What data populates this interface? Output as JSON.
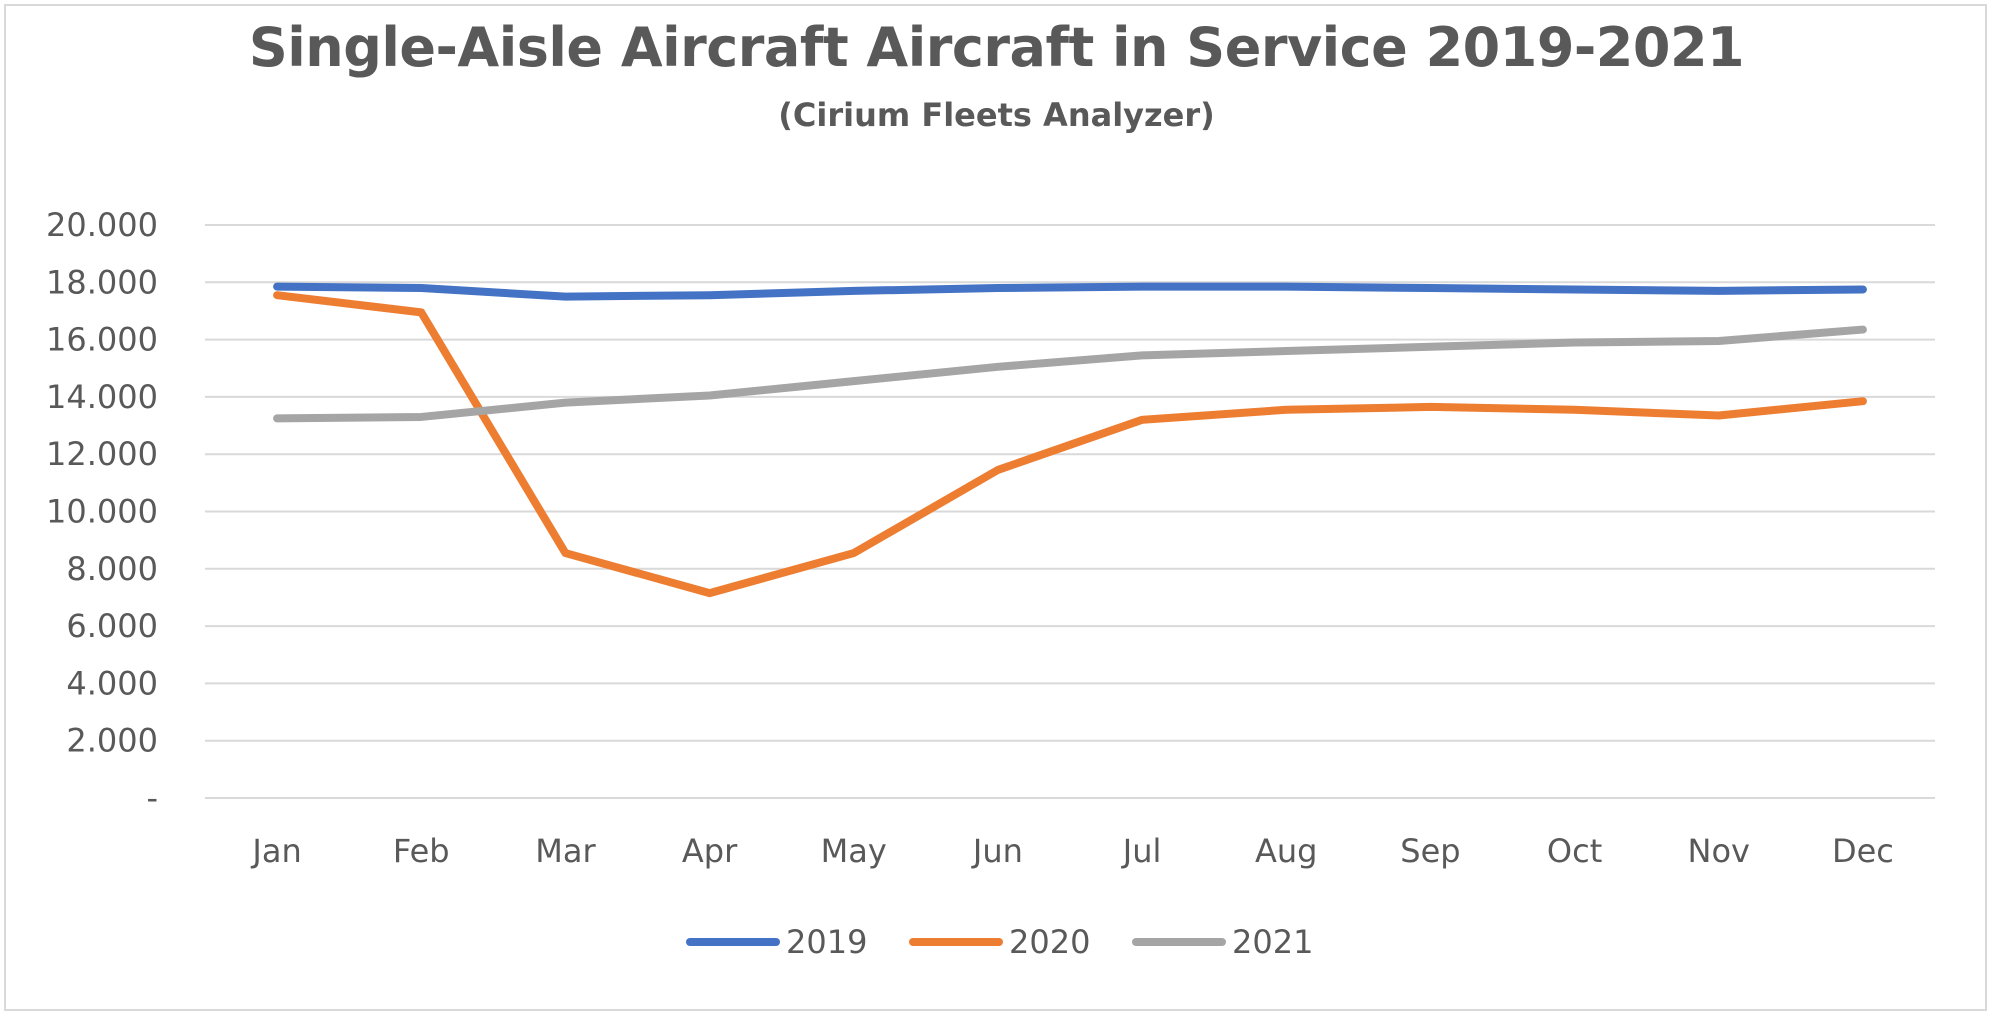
{
  "chart_data": {
    "type": "line",
    "title": "Single-Aisle Aircraft Aircraft in Service 2019-2021",
    "subtitle": "(Cirium Fleets Analyzer)",
    "categories": [
      "Jan",
      "Feb",
      "Mar",
      "Apr",
      "May",
      "Jun",
      "Jul",
      "Aug",
      "Sep",
      "Oct",
      "Nov",
      "Dec"
    ],
    "y_ticks": [
      "-",
      "2.000",
      "4.000",
      "6.000",
      "8.000",
      "10.000",
      "12.000",
      "14.000",
      "16.000",
      "18.000",
      "20.000"
    ],
    "ylim": [
      0,
      20000
    ],
    "grid": true,
    "legend_position": "bottom",
    "series": [
      {
        "name": "2019",
        "color": "#4472c4",
        "values": [
          17850,
          17800,
          17500,
          17550,
          17700,
          17800,
          17850,
          17850,
          17800,
          17750,
          17700,
          17750
        ]
      },
      {
        "name": "2020",
        "color": "#ed7d31",
        "values": [
          17550,
          16950,
          8550,
          7150,
          8550,
          11450,
          13200,
          13550,
          13650,
          13550,
          13350,
          13850
        ]
      },
      {
        "name": "2021",
        "color": "#a5a5a5",
        "values": [
          13250,
          13300,
          13800,
          14050,
          14550,
          15050,
          15450,
          15600,
          15750,
          15900,
          15950,
          16350
        ]
      }
    ]
  }
}
